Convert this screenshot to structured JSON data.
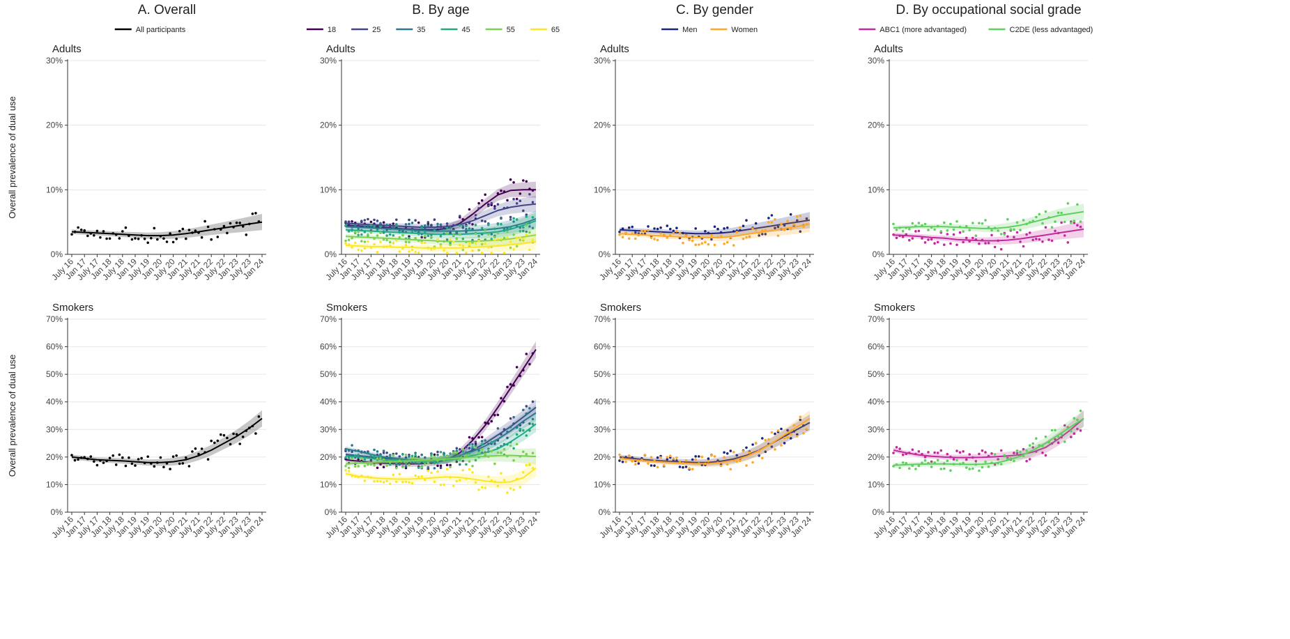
{
  "chart_data": {
    "type": "line",
    "x": [
      "July 16",
      "Jan 17",
      "July 17",
      "Jan 18",
      "July 18",
      "Jan 19",
      "July 19",
      "Jan 20",
      "July 20",
      "Jan 21",
      "July 21",
      "Jan 22",
      "July 22",
      "Jan 23",
      "July 23",
      "Jan 24"
    ],
    "ylabel": "Overall prevalence of dual use",
    "columns": [
      {
        "title": "A. Overall",
        "legend": [
          {
            "name": "All participants",
            "color": "#000000"
          }
        ],
        "panels": [
          {
            "label": "Adults",
            "ylim": [
              0,
              30
            ],
            "yticks": [
              "0%",
              "10%",
              "20%",
              "30%"
            ],
            "series": [
              {
                "name": "All participants",
                "color": "#000000",
                "values": [
                  3.5,
                  3.4,
                  3.3,
                  3.2,
                  3.1,
                  3.0,
                  2.9,
                  2.9,
                  3.0,
                  3.2,
                  3.5,
                  3.8,
                  4.1,
                  4.4,
                  4.7,
                  5.0
                ]
              }
            ]
          },
          {
            "label": "Smokers",
            "ylim": [
              0,
              70
            ],
            "yticks": [
              "0%",
              "10%",
              "20%",
              "30%",
              "40%",
              "50%",
              "60%",
              "70%"
            ],
            "series": [
              {
                "name": "All participants",
                "color": "#000000",
                "values": [
                  20,
                  19.5,
                  19,
                  18.8,
                  18.6,
                  18.3,
                  18,
                  18,
                  18.3,
                  19,
                  20.5,
                  22.5,
                  25,
                  27.5,
                  30.5,
                  34
                ]
              }
            ]
          }
        ]
      },
      {
        "title": "B. By age",
        "legend": [
          {
            "name": "18",
            "color": "#440154"
          },
          {
            "name": "25",
            "color": "#414487"
          },
          {
            "name": "35",
            "color": "#2a788e"
          },
          {
            "name": "45",
            "color": "#22a884"
          },
          {
            "name": "55",
            "color": "#7ad151"
          },
          {
            "name": "65",
            "color": "#fde725"
          }
        ],
        "panels": [
          {
            "label": "Adults",
            "ylim": [
              0,
              30
            ],
            "yticks": [
              "0%",
              "10%",
              "20%",
              "30%"
            ],
            "series": [
              {
                "name": "18",
                "color": "#440154",
                "values": [
                  4.5,
                  4.4,
                  4.3,
                  4.2,
                  4.0,
                  3.9,
                  3.8,
                  3.8,
                  4.0,
                  4.8,
                  6.2,
                  7.8,
                  9.2,
                  9.9,
                  10.0,
                  10.0
                ]
              },
              {
                "name": "25",
                "color": "#414487",
                "values": [
                  4.8,
                  4.7,
                  4.6,
                  4.5,
                  4.4,
                  4.3,
                  4.2,
                  4.2,
                  4.3,
                  4.6,
                  5.2,
                  6.0,
                  6.8,
                  7.3,
                  7.6,
                  7.8
                ]
              },
              {
                "name": "35",
                "color": "#2a788e",
                "values": [
                  4.3,
                  4.2,
                  4.1,
                  4.0,
                  3.9,
                  3.8,
                  3.7,
                  3.6,
                  3.6,
                  3.6,
                  3.7,
                  3.8,
                  4.0,
                  4.3,
                  4.8,
                  5.5
                ]
              },
              {
                "name": "45",
                "color": "#22a884",
                "values": [
                  3.8,
                  3.7,
                  3.6,
                  3.5,
                  3.4,
                  3.3,
                  3.2,
                  3.1,
                  3.1,
                  3.1,
                  3.2,
                  3.3,
                  3.5,
                  3.9,
                  4.5,
                  5.2
                ]
              },
              {
                "name": "55",
                "color": "#7ad151",
                "values": [
                  2.8,
                  2.7,
                  2.6,
                  2.5,
                  2.4,
                  2.3,
                  2.2,
                  2.1,
                  2.0,
                  2.0,
                  2.0,
                  2.1,
                  2.2,
                  2.4,
                  2.7,
                  3.0
                ]
              },
              {
                "name": "65",
                "color": "#fde725",
                "values": [
                  1.4,
                  1.3,
                  1.2,
                  1.2,
                  1.1,
                  1.1,
                  1.0,
                  1.0,
                  1.0,
                  1.0,
                  1.1,
                  1.2,
                  1.3,
                  1.5,
                  1.7,
                  2.0
                ]
              }
            ]
          },
          {
            "label": "Smokers",
            "ylim": [
              0,
              70
            ],
            "yticks": [
              "0%",
              "10%",
              "20%",
              "30%",
              "40%",
              "50%",
              "60%",
              "70%"
            ],
            "series": [
              {
                "name": "18",
                "color": "#440154",
                "values": [
                  19,
                  18.5,
                  18,
                  17.8,
                  17.6,
                  17.5,
                  17.6,
                  18,
                  19,
                  21.5,
                  26,
                  31.5,
                  38,
                  45,
                  52,
                  59
                ]
              },
              {
                "name": "25",
                "color": "#414487",
                "values": [
                  21,
                  20.5,
                  20,
                  19.5,
                  19,
                  18.8,
                  18.6,
                  18.7,
                  19.2,
                  20.5,
                  22.5,
                  25,
                  28,
                  31,
                  34.5,
                  38
                ]
              },
              {
                "name": "35",
                "color": "#2a788e",
                "values": [
                  23,
                  22,
                  21,
                  20,
                  19.5,
                  19,
                  18.8,
                  18.8,
                  19.3,
                  20.5,
                  22,
                  24,
                  26.5,
                  29.5,
                  33,
                  36
                ]
              },
              {
                "name": "45",
                "color": "#22a884",
                "values": [
                  20.5,
                  20,
                  19.5,
                  19,
                  18.8,
                  18.6,
                  18.5,
                  18.6,
                  19,
                  19.5,
                  20.5,
                  21.5,
                  23,
                  25.5,
                  28.5,
                  32
                ]
              },
              {
                "name": "55",
                "color": "#7ad151",
                "values": [
                  17.5,
                  17.8,
                  18,
                  18.2,
                  18.4,
                  18.6,
                  18.8,
                  19,
                  19.3,
                  19.6,
                  20,
                  20.3,
                  20.5,
                  20.6,
                  20.4,
                  20.2
                ]
              },
              {
                "name": "65",
                "color": "#fde725",
                "values": [
                  14,
                  13,
                  12.5,
                  12.2,
                  12,
                  12,
                  12.2,
                  12.5,
                  12.8,
                  12.6,
                  12,
                  11.3,
                  10.8,
                  11,
                  12.5,
                  16
                ]
              }
            ]
          }
        ]
      },
      {
        "title": "C. By gender",
        "legend": [
          {
            "name": "Men",
            "color": "#1a237e"
          },
          {
            "name": "Women",
            "color": "#ffa726"
          }
        ],
        "panels": [
          {
            "label": "Adults",
            "ylim": [
              0,
              30
            ],
            "yticks": [
              "0%",
              "10%",
              "20%",
              "30%"
            ],
            "series": [
              {
                "name": "Men",
                "color": "#1a237e",
                "values": [
                  3.8,
                  3.7,
                  3.6,
                  3.5,
                  3.4,
                  3.3,
                  3.2,
                  3.2,
                  3.3,
                  3.5,
                  3.8,
                  4.1,
                  4.4,
                  4.7,
                  5.0,
                  5.3
                ]
              },
              {
                "name": "Women",
                "color": "#ffa726",
                "values": [
                  3.2,
                  3.1,
                  3.0,
                  2.9,
                  2.8,
                  2.7,
                  2.6,
                  2.6,
                  2.6,
                  2.8,
                  3.1,
                  3.4,
                  3.7,
                  4.0,
                  4.3,
                  4.7
                ]
              }
            ]
          },
          {
            "label": "Smokers",
            "ylim": [
              0,
              70
            ],
            "yticks": [
              "0%",
              "10%",
              "20%",
              "30%",
              "40%",
              "50%",
              "60%",
              "70%"
            ],
            "series": [
              {
                "name": "Men",
                "color": "#1a237e",
                "values": [
                  20,
                  19.5,
                  19,
                  18.7,
                  18.4,
                  18.2,
                  18,
                  18,
                  18.5,
                  19.3,
                  20.6,
                  22.5,
                  25,
                  27.5,
                  30,
                  32.5
                ]
              },
              {
                "name": "Women",
                "color": "#ffa726",
                "values": [
                  19.5,
                  19,
                  18.6,
                  18.3,
                  18,
                  17.8,
                  17.6,
                  17.6,
                  18,
                  18.8,
                  20.2,
                  22.3,
                  25,
                  28,
                  31,
                  34
                ]
              }
            ]
          }
        ]
      },
      {
        "title": "D. By occupational social grade",
        "legend": [
          {
            "name": "ABC1 (more advantaged)",
            "color": "#c2299b"
          },
          {
            "name": "C2DE (less advantaged)",
            "color": "#5fcf5f"
          }
        ],
        "panels": [
          {
            "label": "Adults",
            "ylim": [
              0,
              30
            ],
            "yticks": [
              "0%",
              "10%",
              "20%",
              "30%"
            ],
            "series": [
              {
                "name": "ABC1 (more advantaged)",
                "color": "#c2299b",
                "values": [
                  3.0,
                  2.9,
                  2.8,
                  2.6,
                  2.5,
                  2.3,
                  2.2,
                  2.1,
                  2.1,
                  2.2,
                  2.4,
                  2.7,
                  3.0,
                  3.3,
                  3.6,
                  3.9
                ]
              },
              {
                "name": "C2DE (less advantaged)",
                "color": "#5fcf5f",
                "values": [
                  4.1,
                  4.2,
                  4.3,
                  4.3,
                  4.3,
                  4.2,
                  4.1,
                  4.0,
                  4.0,
                  4.2,
                  4.5,
                  5.0,
                  5.5,
                  6.0,
                  6.3,
                  6.6
                ]
              }
            ]
          },
          {
            "label": "Smokers",
            "ylim": [
              0,
              70
            ],
            "yticks": [
              "0%",
              "10%",
              "20%",
              "30%",
              "40%",
              "50%",
              "60%",
              "70%"
            ],
            "series": [
              {
                "name": "ABC1 (more advantaged)",
                "color": "#c2299b",
                "values": [
                  22.5,
                  21.5,
                  20.8,
                  20.3,
                  20,
                  19.8,
                  19.8,
                  19.9,
                  20.1,
                  20.4,
                  20.8,
                  21.8,
                  23.5,
                  26.5,
                  30,
                  34
                ]
              },
              {
                "name": "C2DE (less advantaged)",
                "color": "#5fcf5f",
                "values": [
                  17,
                  17.2,
                  17.4,
                  17.5,
                  17.5,
                  17.4,
                  17.3,
                  17.4,
                  17.8,
                  18.8,
                  20.3,
                  22.5,
                  25,
                  28,
                  31,
                  34
                ]
              }
            ]
          }
        ]
      }
    ]
  }
}
